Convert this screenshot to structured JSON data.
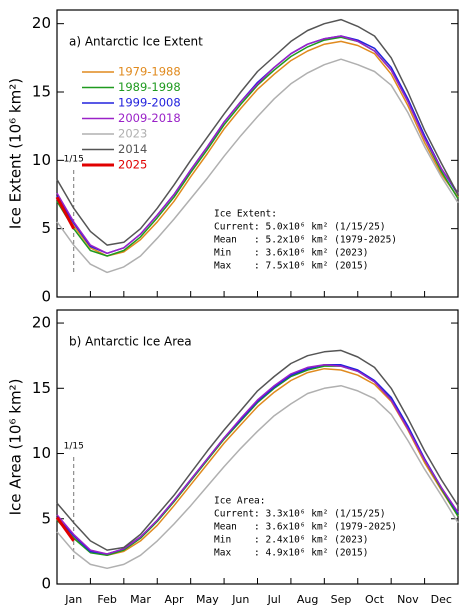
{
  "chart_data": [
    {
      "type": "line",
      "title": "a) Antarctic Ice Extent",
      "y_label": "Ice Extent (10⁶ km²)",
      "categories": [
        null,
        "Jan",
        null,
        "Feb",
        null,
        "Mar",
        null,
        "Apr",
        null,
        "May",
        null,
        "Jun",
        null,
        "Jul",
        null,
        "Aug",
        null,
        "Sep",
        null,
        "Oct",
        null,
        "Nov",
        null,
        "Dec",
        null
      ],
      "ylim": [
        0,
        21
      ],
      "yticks": [
        0,
        5,
        10,
        15,
        20
      ],
      "grid": false,
      "legend": "upper left",
      "marker_label": "1/15",
      "annotation": [
        "Ice Extent:",
        "Current: 5.0x10⁶ km² (1/15/25)",
        "Mean   : 5.2x10⁶ km² (1979-2025)",
        "Min    : 3.6x10⁶ km² (2023)",
        "Max    : 7.5x10⁶ km² (2015)"
      ],
      "series": [
        {
          "name": "1979-1988",
          "color": "#e08a1e",
          "values": [
            7.2,
            5.2,
            3.6,
            3.0,
            3.3,
            4.2,
            5.5,
            7.0,
            8.8,
            10.5,
            12.3,
            13.8,
            15.2,
            16.3,
            17.3,
            18.0,
            18.5,
            18.7,
            18.4,
            17.8,
            16.3,
            14.0,
            11.3,
            9.0,
            7.3
          ]
        },
        {
          "name": "1989-1998",
          "color": "#1f9a1f",
          "values": [
            7.0,
            5.0,
            3.4,
            3.0,
            3.4,
            4.4,
            5.8,
            7.3,
            9.1,
            10.8,
            12.6,
            14.1,
            15.5,
            16.6,
            17.6,
            18.3,
            18.8,
            19.0,
            18.7,
            18.0,
            16.6,
            14.3,
            11.6,
            9.2,
            7.2
          ]
        },
        {
          "name": "1999-2008",
          "color": "#2222dd",
          "values": [
            7.4,
            5.4,
            3.7,
            3.2,
            3.6,
            4.6,
            6.0,
            7.5,
            9.3,
            11.0,
            12.8,
            14.3,
            15.7,
            16.8,
            17.8,
            18.5,
            18.9,
            19.1,
            18.8,
            18.2,
            16.8,
            14.5,
            11.8,
            9.4,
            7.5
          ]
        },
        {
          "name": "2009-2018",
          "color": "#9a22c8",
          "values": [
            7.6,
            5.5,
            3.8,
            3.2,
            3.6,
            4.6,
            6.0,
            7.5,
            9.3,
            11.0,
            12.8,
            14.3,
            15.6,
            16.8,
            17.8,
            18.5,
            18.9,
            19.1,
            18.7,
            18.0,
            16.6,
            14.3,
            11.6,
            9.4,
            7.6
          ]
        },
        {
          "name": "2023",
          "color": "#b0b0b0",
          "values": [
            5.5,
            3.8,
            2.4,
            1.8,
            2.2,
            3.0,
            4.3,
            5.7,
            7.2,
            8.7,
            10.3,
            11.8,
            13.2,
            14.5,
            15.6,
            16.4,
            17.0,
            17.4,
            17.0,
            16.5,
            15.5,
            13.5,
            11.0,
            8.8,
            6.9
          ]
        },
        {
          "name": "2014",
          "color": "#555555",
          "values": [
            8.6,
            6.5,
            4.8,
            3.8,
            4.0,
            5.0,
            6.5,
            8.2,
            10.0,
            11.7,
            13.4,
            15.0,
            16.5,
            17.6,
            18.7,
            19.5,
            20.0,
            20.3,
            19.8,
            19.1,
            17.5,
            15.0,
            12.2,
            9.8,
            7.5
          ]
        },
        {
          "name": "2025",
          "color": "#e00000",
          "values": [
            7.3,
            5.0,
            null,
            null,
            null,
            null,
            null,
            null,
            null,
            null,
            null,
            null,
            null,
            null,
            null,
            null,
            null,
            null,
            null,
            null,
            null,
            null,
            null,
            null,
            null
          ]
        }
      ]
    },
    {
      "type": "line",
      "title": "b) Antarctic Ice Area",
      "y_label": "Ice Area (10⁶ km²)",
      "categories": [
        null,
        "Jan",
        null,
        "Feb",
        null,
        "Mar",
        null,
        "Apr",
        null,
        "May",
        null,
        "Jun",
        null,
        "Jul",
        null,
        "Aug",
        null,
        "Sep",
        null,
        "Oct",
        null,
        "Nov",
        null,
        "Dec",
        null
      ],
      "ylim": [
        0,
        21
      ],
      "yticks": [
        0,
        5,
        10,
        15,
        20
      ],
      "grid": false,
      "marker_label": "1/15",
      "annotation": [
        "Ice Area:",
        "Current: 3.3x10⁶ km² (1/15/25)",
        "Mean   : 3.6x10⁶ km² (1979-2025)",
        "Min    : 2.4x10⁶ km² (2023)",
        "Max    : 4.9x10⁶ km² (2015)"
      ],
      "series": [
        {
          "color": "#e08a1e",
          "values": [
            5.0,
            3.6,
            2.5,
            2.2,
            2.5,
            3.3,
            4.5,
            6.0,
            7.6,
            9.2,
            10.8,
            12.2,
            13.6,
            14.7,
            15.6,
            16.2,
            16.5,
            16.4,
            16.0,
            15.3,
            14.0,
            11.8,
            9.3,
            7.2,
            5.2
          ]
        },
        {
          "color": "#1f9a1f",
          "values": [
            4.9,
            3.5,
            2.4,
            2.2,
            2.6,
            3.5,
            4.8,
            6.3,
            7.9,
            9.5,
            11.1,
            12.5,
            13.9,
            15.0,
            15.9,
            16.4,
            16.7,
            16.7,
            16.3,
            15.5,
            14.2,
            12.0,
            9.5,
            7.3,
            5.2
          ]
        },
        {
          "color": "#2222dd",
          "values": [
            5.1,
            3.7,
            2.5,
            2.3,
            2.7,
            3.6,
            4.9,
            6.4,
            8.0,
            9.6,
            11.2,
            12.6,
            14.0,
            15.1,
            16.0,
            16.5,
            16.8,
            16.8,
            16.4,
            15.6,
            14.3,
            12.1,
            9.6,
            7.4,
            5.4
          ]
        },
        {
          "color": "#9a22c8",
          "values": [
            5.3,
            3.8,
            2.6,
            2.3,
            2.7,
            3.6,
            4.9,
            6.4,
            8.0,
            9.6,
            11.2,
            12.7,
            14.1,
            15.2,
            16.1,
            16.6,
            16.8,
            16.7,
            16.3,
            15.5,
            14.1,
            11.9,
            9.5,
            7.4,
            5.5
          ]
        },
        {
          "color": "#b0b0b0",
          "values": [
            4.0,
            2.5,
            1.5,
            1.2,
            1.5,
            2.2,
            3.3,
            4.6,
            6.0,
            7.5,
            9.0,
            10.4,
            11.7,
            12.9,
            13.8,
            14.6,
            15.0,
            15.2,
            14.8,
            14.2,
            13.0,
            11.0,
            8.8,
            6.8,
            4.7
          ]
        },
        {
          "color": "#555555",
          "values": [
            6.2,
            4.7,
            3.3,
            2.6,
            2.8,
            3.8,
            5.3,
            6.8,
            8.5,
            10.2,
            11.8,
            13.3,
            14.8,
            15.9,
            16.9,
            17.5,
            17.8,
            17.9,
            17.4,
            16.6,
            15.0,
            12.7,
            10.2,
            8.0,
            6.0
          ]
        },
        {
          "color": "#e00000",
          "values": [
            5.1,
            3.3,
            null,
            null,
            null,
            null,
            null,
            null,
            null,
            null,
            null,
            null,
            null,
            null,
            null,
            null,
            null,
            null,
            null,
            null,
            null,
            null,
            null,
            null,
            null
          ]
        }
      ]
    }
  ]
}
